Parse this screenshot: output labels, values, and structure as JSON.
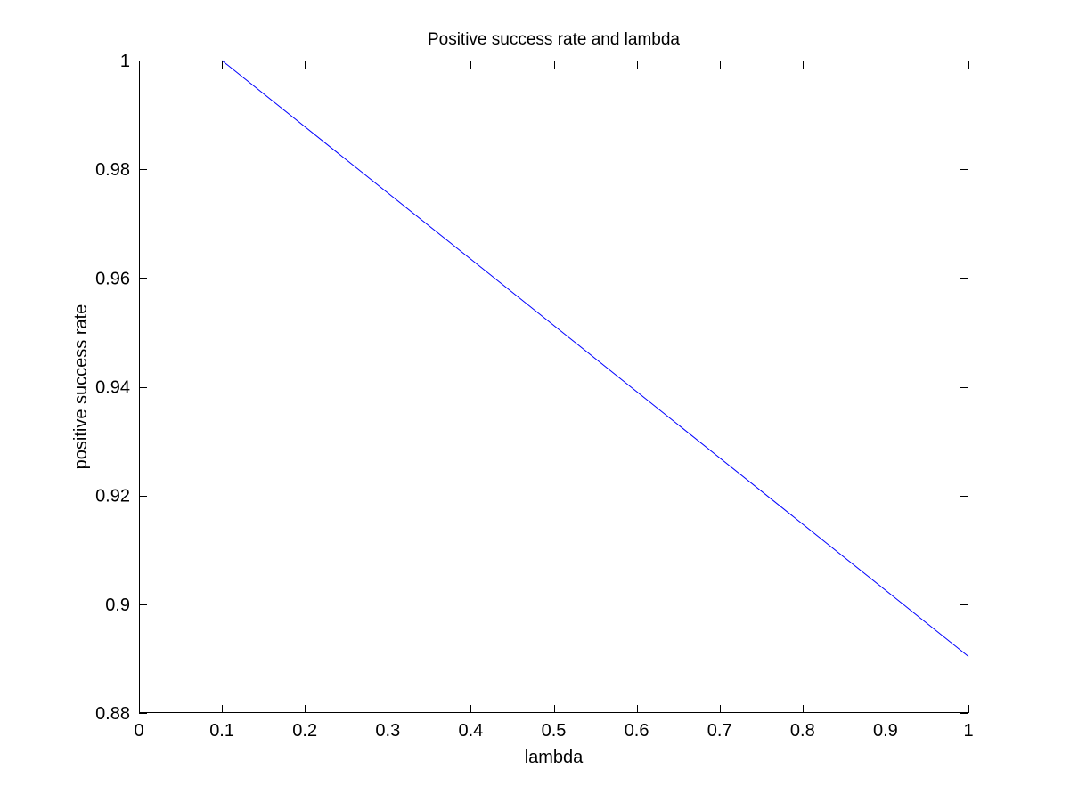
{
  "chart_data": {
    "type": "line",
    "title": "Positive success rate and lambda",
    "xlabel": "lambda",
    "ylabel": "positive success rate",
    "xlim": [
      0,
      1
    ],
    "ylim": [
      0.88,
      1
    ],
    "xticks": [
      0,
      0.1,
      0.2,
      0.3,
      0.4,
      0.5,
      0.6,
      0.7,
      0.8,
      0.9,
      1
    ],
    "xtick_labels": [
      "0",
      "0.1",
      "0.2",
      "0.3",
      "0.4",
      "0.5",
      "0.6",
      "0.7",
      "0.8",
      "0.9",
      "1"
    ],
    "yticks": [
      0.88,
      0.9,
      0.92,
      0.94,
      0.96,
      0.98,
      1
    ],
    "ytick_labels": [
      "0.88",
      "0.9",
      "0.92",
      "0.94",
      "0.96",
      "0.98",
      "1"
    ],
    "grid": false,
    "series": [
      {
        "color": "#0000ff",
        "x": [
          0.1,
          1.0
        ],
        "y": [
          1.0,
          0.8904
        ]
      }
    ]
  }
}
